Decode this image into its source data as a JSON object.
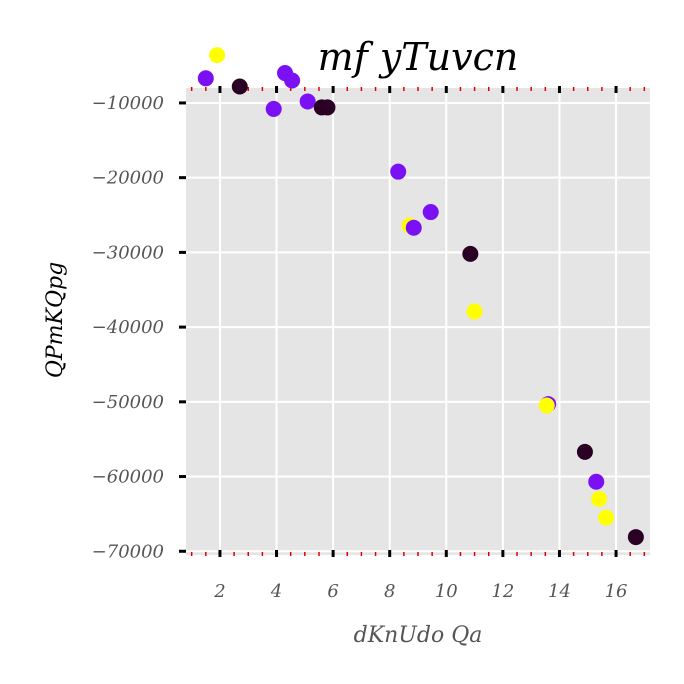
{
  "chart_data": {
    "type": "scatter",
    "title": "mf yTuvcn",
    "xlabel": "dKnUdo Qa",
    "ylabel": "QPmKQpg",
    "xlim": [
      0.8,
      17.2
    ],
    "ylim": [
      -70500,
      -8000
    ],
    "xticks": [
      2,
      4,
      6,
      8,
      10,
      12,
      14,
      16
    ],
    "yticks": [
      -10000,
      -20000,
      -30000,
      -40000,
      -50000,
      -60000,
      -70000
    ],
    "xtick_labels": [
      "2",
      "4",
      "6",
      "8",
      "10",
      "12",
      "14",
      "16"
    ],
    "ytick_labels": [
      "−10000",
      "−20000",
      "−30000",
      "−40000",
      "−50000",
      "−60000",
      "−70000"
    ],
    "grid": true,
    "background": "#e5e5e5",
    "colors": {
      "yellow": "#ffff00",
      "violet": "#7b10f5",
      "purple": "#6b12e8",
      "dark": "#2a0024"
    },
    "points": [
      {
        "x": 1.5,
        "y": -6700,
        "color": "violet"
      },
      {
        "x": 1.9,
        "y": -3600,
        "color": "yellow"
      },
      {
        "x": 2.7,
        "y": -7800,
        "color": "dark"
      },
      {
        "x": 3.9,
        "y": -10800,
        "color": "violet"
      },
      {
        "x": 4.3,
        "y": -6000,
        "color": "violet"
      },
      {
        "x": 4.55,
        "y": -7000,
        "color": "violet"
      },
      {
        "x": 5.1,
        "y": -9800,
        "color": "violet"
      },
      {
        "x": 5.6,
        "y": -10600,
        "color": "dark"
      },
      {
        "x": 5.8,
        "y": -10600,
        "color": "dark"
      },
      {
        "x": 8.3,
        "y": -19200,
        "color": "violet"
      },
      {
        "x": 8.7,
        "y": -26400,
        "color": "yellow"
      },
      {
        "x": 8.85,
        "y": -26700,
        "color": "violet"
      },
      {
        "x": 9.45,
        "y": -24600,
        "color": "violet"
      },
      {
        "x": 10.85,
        "y": -30200,
        "color": "dark"
      },
      {
        "x": 11.0,
        "y": -37900,
        "color": "yellow"
      },
      {
        "x": 13.6,
        "y": -50300,
        "color": "violet"
      },
      {
        "x": 13.55,
        "y": -50500,
        "color": "yellow"
      },
      {
        "x": 14.9,
        "y": -56700,
        "color": "dark"
      },
      {
        "x": 15.3,
        "y": -60700,
        "color": "violet"
      },
      {
        "x": 15.4,
        "y": -63000,
        "color": "yellow"
      },
      {
        "x": 15.65,
        "y": -65500,
        "color": "yellow"
      },
      {
        "x": 16.7,
        "y": -68100,
        "color": "dark"
      }
    ]
  }
}
